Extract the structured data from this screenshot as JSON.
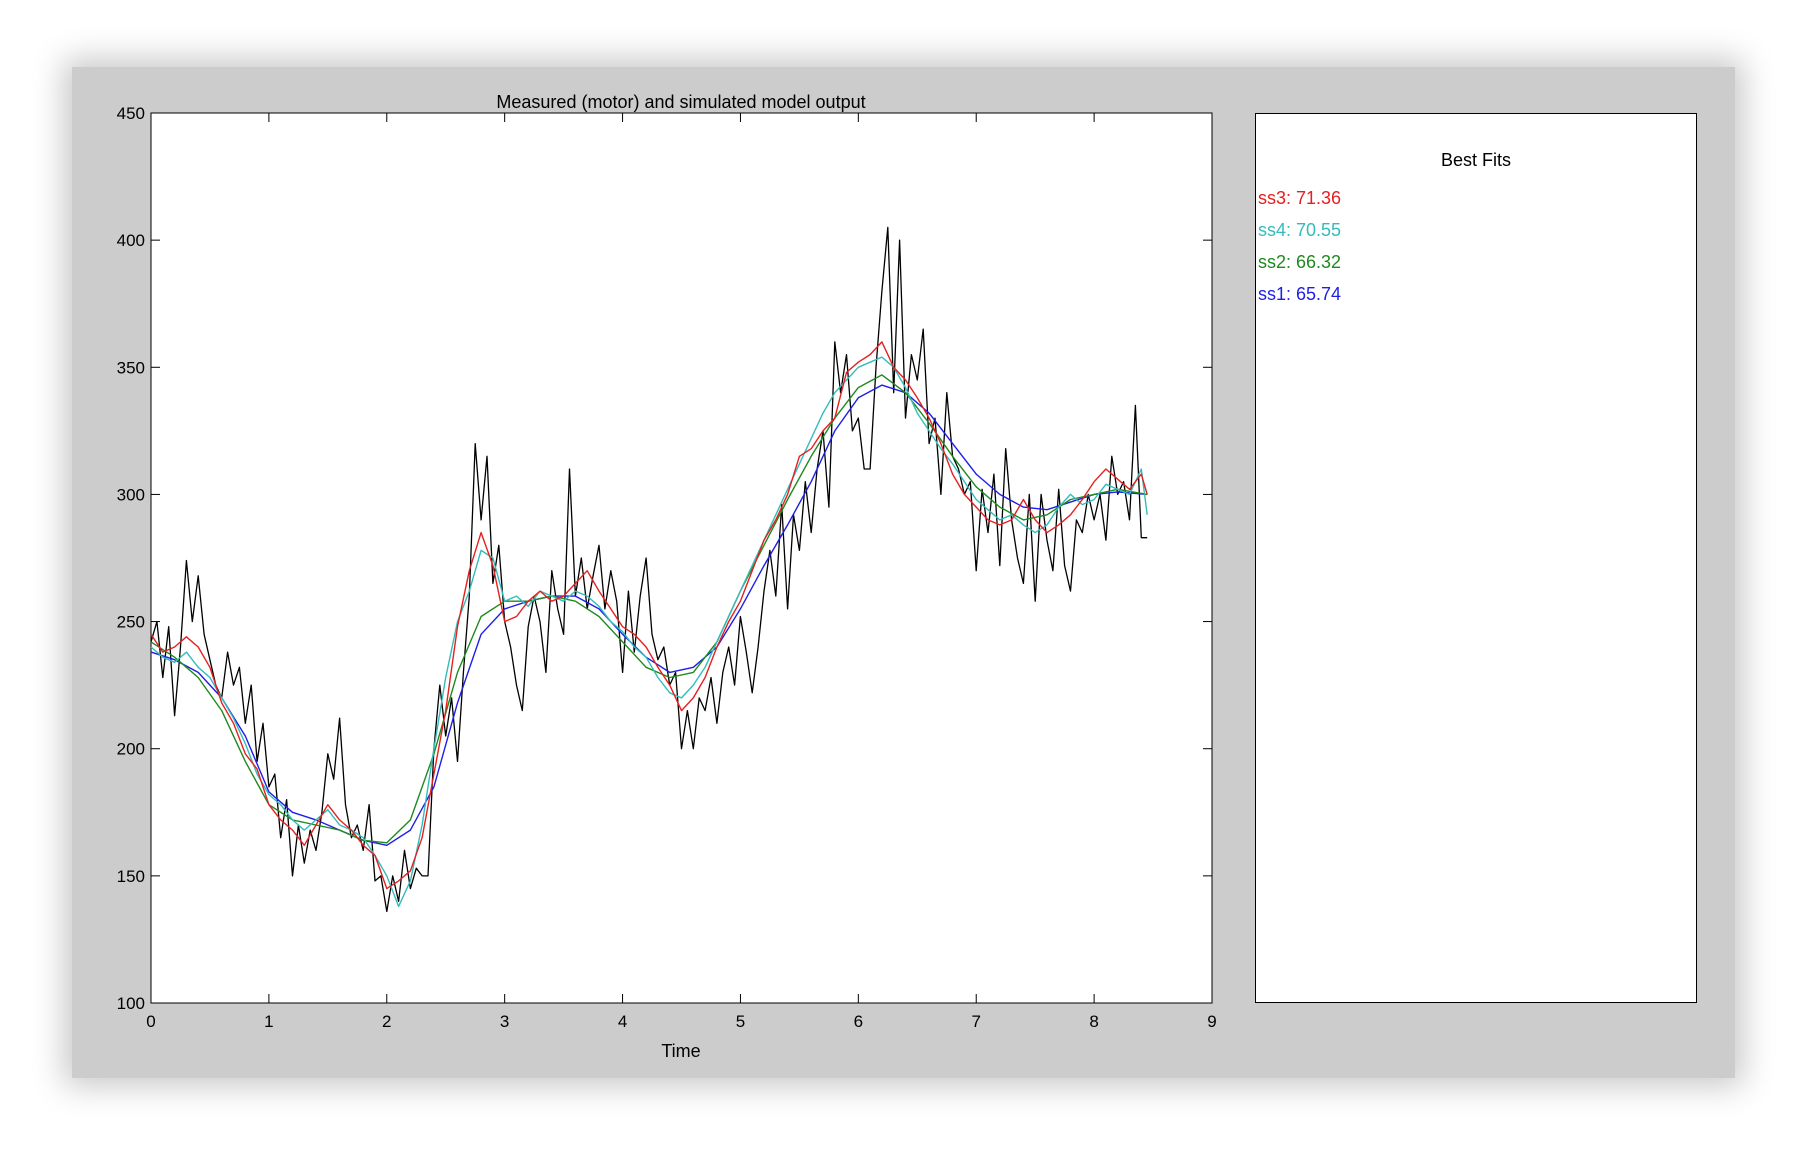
{
  "window": {
    "background": "#cccccc"
  },
  "chart_data": {
    "type": "line",
    "title": "Measured (motor) and simulated model output",
    "xlabel": "Time",
    "ylabel": "",
    "xlim": [
      0,
      9
    ],
    "ylim": [
      100,
      450
    ],
    "xticks": [
      0,
      1,
      2,
      3,
      4,
      5,
      6,
      7,
      8,
      9
    ],
    "yticks": [
      100,
      150,
      200,
      250,
      300,
      350,
      400,
      450
    ],
    "grid": false,
    "series": [
      {
        "role": "measured",
        "color": "#000000",
        "x": [
          0,
          0.05,
          0.1,
          0.15,
          0.2,
          0.25,
          0.3,
          0.35,
          0.4,
          0.45,
          0.5,
          0.55,
          0.6,
          0.65,
          0.7,
          0.75,
          0.8,
          0.85,
          0.9,
          0.95,
          1.0,
          1.05,
          1.1,
          1.15,
          1.2,
          1.25,
          1.3,
          1.35,
          1.4,
          1.45,
          1.5,
          1.55,
          1.6,
          1.65,
          1.7,
          1.75,
          1.8,
          1.85,
          1.9,
          1.95,
          2.0,
          2.05,
          2.1,
          2.15,
          2.2,
          2.25,
          2.3,
          2.35,
          2.4,
          2.45,
          2.5,
          2.55,
          2.6,
          2.65,
          2.7,
          2.75,
          2.8,
          2.85,
          2.9,
          2.95,
          3.0,
          3.05,
          3.1,
          3.15,
          3.2,
          3.25,
          3.3,
          3.35,
          3.4,
          3.45,
          3.5,
          3.55,
          3.6,
          3.65,
          3.7,
          3.75,
          3.8,
          3.85,
          3.9,
          3.95,
          4.0,
          4.05,
          4.1,
          4.15,
          4.2,
          4.25,
          4.3,
          4.35,
          4.4,
          4.45,
          4.5,
          4.55,
          4.6,
          4.65,
          4.7,
          4.75,
          4.8,
          4.85,
          4.9,
          4.95,
          5.0,
          5.05,
          5.1,
          5.15,
          5.2,
          5.25,
          5.3,
          5.35,
          5.4,
          5.45,
          5.5,
          5.55,
          5.6,
          5.65,
          5.7,
          5.75,
          5.8,
          5.85,
          5.9,
          5.95,
          6.0,
          6.05,
          6.1,
          6.15,
          6.2,
          6.25,
          6.3,
          6.35,
          6.4,
          6.45,
          6.5,
          6.55,
          6.6,
          6.65,
          6.7,
          6.75,
          6.8,
          6.85,
          6.9,
          6.95,
          7.0,
          7.05,
          7.1,
          7.15,
          7.2,
          7.25,
          7.3,
          7.35,
          7.4,
          7.45,
          7.5,
          7.55,
          7.6,
          7.65,
          7.7,
          7.75,
          7.8,
          7.85,
          7.9,
          7.95,
          8.0,
          8.05,
          8.1,
          8.15,
          8.2,
          8.25,
          8.3,
          8.35,
          8.4,
          8.45
        ],
        "y": [
          242,
          250,
          228,
          248,
          213,
          240,
          274,
          250,
          268,
          245,
          235,
          225,
          220,
          238,
          225,
          232,
          210,
          225,
          195,
          210,
          185,
          190,
          165,
          180,
          150,
          170,
          155,
          168,
          160,
          175,
          198,
          188,
          212,
          178,
          165,
          170,
          160,
          178,
          148,
          150,
          136,
          150,
          140,
          160,
          145,
          153,
          150,
          150,
          200,
          225,
          205,
          220,
          195,
          230,
          260,
          320,
          290,
          315,
          265,
          280,
          250,
          240,
          225,
          215,
          248,
          260,
          250,
          230,
          270,
          255,
          245,
          310,
          260,
          275,
          255,
          268,
          280,
          255,
          270,
          258,
          230,
          262,
          238,
          260,
          275,
          245,
          235,
          240,
          225,
          230,
          200,
          215,
          200,
          220,
          215,
          228,
          210,
          230,
          240,
          225,
          252,
          238,
          222,
          240,
          262,
          278,
          260,
          296,
          255,
          292,
          278,
          305,
          285,
          310,
          325,
          295,
          360,
          340,
          355,
          325,
          330,
          310,
          310,
          350,
          380,
          405,
          340,
          400,
          330,
          355,
          345,
          365,
          320,
          330,
          300,
          340,
          315,
          310,
          300,
          305,
          270,
          302,
          285,
          308,
          272,
          318,
          290,
          275,
          265,
          300,
          258,
          300,
          282,
          270,
          302,
          272,
          262,
          290,
          285,
          300,
          290,
          300,
          282,
          315,
          300,
          305,
          290,
          335,
          283,
          283
        ]
      },
      {
        "name": "ss3",
        "color": "#e52020",
        "x": [
          0,
          0.1,
          0.2,
          0.3,
          0.4,
          0.5,
          0.6,
          0.7,
          0.8,
          0.9,
          1.0,
          1.1,
          1.2,
          1.3,
          1.4,
          1.5,
          1.6,
          1.7,
          1.8,
          1.9,
          2.0,
          2.1,
          2.2,
          2.3,
          2.4,
          2.5,
          2.6,
          2.7,
          2.8,
          2.9,
          3.0,
          3.1,
          3.2,
          3.3,
          3.4,
          3.5,
          3.6,
          3.7,
          3.8,
          3.9,
          4.0,
          4.1,
          4.2,
          4.3,
          4.4,
          4.5,
          4.6,
          4.7,
          4.8,
          4.9,
          5.0,
          5.1,
          5.2,
          5.3,
          5.4,
          5.5,
          5.6,
          5.7,
          5.8,
          5.9,
          6.0,
          6.1,
          6.2,
          6.3,
          6.4,
          6.5,
          6.6,
          6.7,
          6.8,
          6.9,
          7.0,
          7.1,
          7.2,
          7.3,
          7.4,
          7.5,
          7.6,
          7.7,
          7.8,
          7.9,
          8.0,
          8.1,
          8.2,
          8.3,
          8.4,
          8.45
        ],
        "y": [
          245,
          238,
          240,
          244,
          240,
          232,
          218,
          210,
          198,
          192,
          178,
          172,
          168,
          162,
          170,
          178,
          172,
          168,
          162,
          158,
          145,
          148,
          152,
          165,
          190,
          215,
          248,
          270,
          285,
          272,
          250,
          252,
          258,
          262,
          258,
          260,
          265,
          270,
          262,
          255,
          248,
          245,
          240,
          232,
          225,
          215,
          220,
          228,
          240,
          250,
          258,
          270,
          282,
          290,
          300,
          315,
          318,
          325,
          330,
          348,
          352,
          355,
          360,
          350,
          345,
          338,
          330,
          320,
          308,
          300,
          295,
          290,
          288,
          290,
          298,
          290,
          285,
          288,
          292,
          298,
          305,
          310,
          306,
          302,
          308,
          300
        ]
      },
      {
        "name": "ss4",
        "color": "#33bcbc",
        "x": [
          0,
          0.1,
          0.2,
          0.3,
          0.4,
          0.5,
          0.6,
          0.7,
          0.8,
          0.9,
          1.0,
          1.1,
          1.2,
          1.3,
          1.4,
          1.5,
          1.6,
          1.7,
          1.8,
          1.9,
          2.0,
          2.1,
          2.2,
          2.3,
          2.4,
          2.5,
          2.6,
          2.7,
          2.8,
          2.9,
          3.0,
          3.1,
          3.2,
          3.3,
          3.4,
          3.5,
          3.6,
          3.7,
          3.8,
          3.9,
          4.0,
          4.1,
          4.2,
          4.3,
          4.4,
          4.5,
          4.6,
          4.7,
          4.8,
          4.9,
          5.0,
          5.1,
          5.2,
          5.3,
          5.4,
          5.5,
          5.6,
          5.7,
          5.8,
          5.9,
          6.0,
          6.1,
          6.2,
          6.3,
          6.4,
          6.5,
          6.6,
          6.7,
          6.8,
          6.9,
          7.0,
          7.1,
          7.2,
          7.3,
          7.4,
          7.5,
          7.6,
          7.7,
          7.8,
          7.9,
          8.0,
          8.1,
          8.2,
          8.3,
          8.4,
          8.45
        ],
        "y": [
          240,
          236,
          234,
          238,
          232,
          228,
          220,
          212,
          202,
          190,
          182,
          178,
          172,
          168,
          172,
          176,
          170,
          168,
          165,
          158,
          150,
          138,
          148,
          170,
          200,
          228,
          250,
          262,
          278,
          275,
          258,
          260,
          256,
          262,
          260,
          258,
          262,
          260,
          256,
          250,
          246,
          240,
          236,
          228,
          222,
          220,
          225,
          232,
          242,
          252,
          262,
          272,
          282,
          292,
          302,
          312,
          322,
          332,
          340,
          345,
          350,
          352,
          354,
          350,
          342,
          332,
          325,
          318,
          312,
          305,
          298,
          294,
          290,
          292,
          288,
          285,
          288,
          295,
          300,
          296,
          298,
          304,
          302,
          300,
          310,
          292
        ]
      },
      {
        "name": "ss2",
        "color": "#1e8a1e",
        "x": [
          0,
          0.2,
          0.4,
          0.6,
          0.8,
          1.0,
          1.2,
          1.4,
          1.6,
          1.8,
          2.0,
          2.2,
          2.4,
          2.6,
          2.8,
          3.0,
          3.2,
          3.4,
          3.6,
          3.8,
          4.0,
          4.2,
          4.4,
          4.6,
          4.8,
          5.0,
          5.2,
          5.4,
          5.6,
          5.8,
          6.0,
          6.2,
          6.4,
          6.6,
          6.8,
          7.0,
          7.2,
          7.4,
          7.6,
          7.8,
          8.0,
          8.2,
          8.45
        ],
        "y": [
          242,
          236,
          228,
          215,
          195,
          178,
          172,
          170,
          168,
          164,
          163,
          172,
          198,
          230,
          252,
          258,
          258,
          260,
          258,
          252,
          242,
          232,
          228,
          230,
          242,
          262,
          280,
          298,
          315,
          330,
          342,
          347,
          340,
          328,
          315,
          303,
          295,
          290,
          292,
          298,
          300,
          302,
          300
        ]
      },
      {
        "name": "ss1",
        "color": "#1e1ee8",
        "x": [
          0,
          0.2,
          0.4,
          0.6,
          0.8,
          1.0,
          1.2,
          1.4,
          1.6,
          1.8,
          2.0,
          2.2,
          2.4,
          2.6,
          2.8,
          3.0,
          3.2,
          3.4,
          3.6,
          3.8,
          4.0,
          4.2,
          4.4,
          4.6,
          4.8,
          5.0,
          5.2,
          5.4,
          5.6,
          5.8,
          6.0,
          6.2,
          6.4,
          6.6,
          6.8,
          7.0,
          7.2,
          7.4,
          7.6,
          7.8,
          8.0,
          8.2,
          8.45
        ],
        "y": [
          238,
          235,
          230,
          220,
          205,
          183,
          175,
          172,
          168,
          164,
          162,
          168,
          185,
          218,
          245,
          255,
          258,
          260,
          260,
          255,
          245,
          236,
          230,
          232,
          240,
          255,
          272,
          288,
          305,
          325,
          338,
          343,
          340,
          332,
          320,
          308,
          300,
          295,
          294,
          297,
          300,
          301,
          300
        ]
      }
    ]
  },
  "best_fits": {
    "title": "Best Fits",
    "entries": [
      {
        "label": "ss3: 71.36",
        "color": "#e52020"
      },
      {
        "label": "ss4: 70.55",
        "color": "#33bcbc"
      },
      {
        "label": "ss2: 66.32",
        "color": "#1e8a1e"
      },
      {
        "label": "ss1: 65.74",
        "color": "#1e1ee8"
      }
    ]
  }
}
